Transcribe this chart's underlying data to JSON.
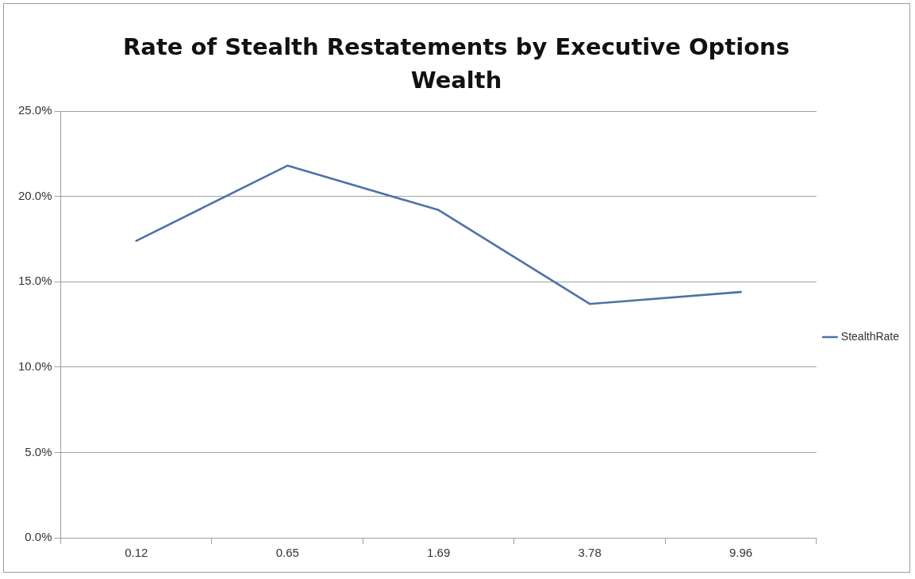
{
  "chart_data": {
    "type": "line",
    "title": "Rate of Stealth Restatements by Executive Options Wealth",
    "categories": [
      "0.12",
      "0.65",
      "1.69",
      "3.78",
      "9.96"
    ],
    "series": [
      {
        "name": "StealthRate",
        "color": "#4f72a6",
        "values": [
          17.4,
          21.8,
          19.2,
          13.7,
          14.4
        ]
      }
    ],
    "ylim": [
      0,
      25
    ],
    "yticks": [
      {
        "value": 0,
        "label": "0.0%"
      },
      {
        "value": 5,
        "label": "5.0%"
      },
      {
        "value": 10,
        "label": "10.0%"
      },
      {
        "value": 15,
        "label": "15.0%"
      },
      {
        "value": 20,
        "label": "20.0%"
      },
      {
        "value": 25,
        "label": "25.0%"
      }
    ],
    "grid": "y",
    "legend": "right",
    "marker": "none",
    "line_style": "solid"
  }
}
